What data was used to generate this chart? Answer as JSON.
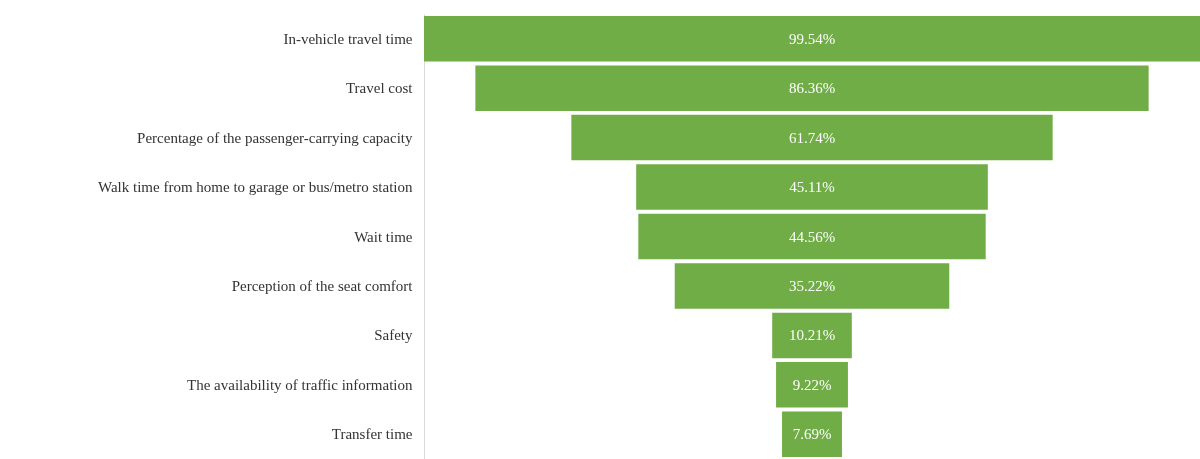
{
  "chart_data": {
    "type": "other",
    "categories": [
      "In-vehicle travel time",
      "Travel cost",
      "Percentage of the passenger-carrying capacity",
      "Walk time from home to garage or bus/metro station",
      "Wait time",
      "Perception of the seat comfort",
      "Safety",
      "The availability of traffic information",
      "Transfer time"
    ],
    "values": [
      99.54,
      86.36,
      61.74,
      45.11,
      44.56,
      35.22,
      10.21,
      9.22,
      7.69
    ],
    "value_labels": [
      "99.54%",
      "86.36%",
      "61.74%",
      "45.11%",
      "44.56%",
      "35.22%",
      "10.21%",
      "9.22%",
      "7.69%"
    ],
    "color": "#70ad47"
  }
}
